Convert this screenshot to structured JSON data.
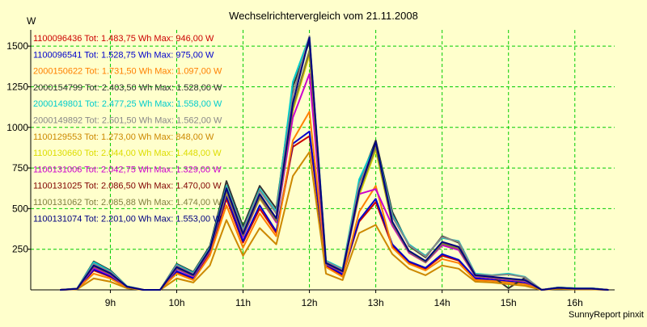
{
  "chart_data": {
    "type": "line",
    "title": "Wechselrichtervergleich vom 21.11.2008",
    "ylabel": "W",
    "xlabel": "",
    "footer": "SunnyReport pinxit",
    "xlim": [
      7.8,
      16.6
    ],
    "ylim": [
      0,
      1600
    ],
    "x_ticks": [
      9,
      10,
      11,
      12,
      13,
      14,
      15,
      16
    ],
    "x_tick_labels": [
      "9h",
      "10h",
      "11h",
      "12h",
      "13h",
      "14h",
      "15h",
      "16h"
    ],
    "y_ticks": [
      250,
      500,
      750,
      1000,
      1250,
      1500
    ],
    "y_tick_labels": [
      "250",
      "500",
      "750",
      "1000",
      "1250",
      "1500"
    ],
    "grid": true,
    "legend_position": "top-left",
    "x": [
      8.25,
      8.5,
      8.75,
      9.0,
      9.25,
      9.5,
      9.75,
      10.0,
      10.25,
      10.5,
      10.75,
      11.0,
      11.25,
      11.5,
      11.75,
      12.0,
      12.25,
      12.5,
      12.75,
      13.0,
      13.25,
      13.5,
      13.75,
      14.0,
      14.25,
      14.5,
      14.75,
      15.0,
      15.25,
      15.5,
      15.75,
      16.0,
      16.25,
      16.5
    ],
    "series": [
      {
        "name": "1100096436 Tot: 1.483,75 Wh Max: 946,00 W",
        "color": "#cc0000",
        "values": [
          0,
          5,
          120,
          80,
          15,
          0,
          0,
          110,
          70,
          230,
          560,
          290,
          500,
          350,
          880,
          946,
          150,
          90,
          420,
          540,
          270,
          170,
          130,
          210,
          180,
          70,
          60,
          50,
          40,
          0,
          10,
          5,
          5,
          0
        ]
      },
      {
        "name": "1100096541 Tot: 1.528,75 Wh Max: 975,00 W",
        "color": "#0000cc",
        "values": [
          0,
          5,
          125,
          85,
          15,
          0,
          0,
          115,
          72,
          240,
          580,
          300,
          520,
          360,
          900,
          975,
          155,
          95,
          430,
          560,
          280,
          175,
          135,
          220,
          185,
          72,
          62,
          52,
          42,
          0,
          10,
          5,
          5,
          0
        ]
      },
      {
        "name": "2000150622 Tot: 1.731,50 Wh Max: 1.097,00 W",
        "color": "#ff8000",
        "values": [
          0,
          5,
          100,
          70,
          12,
          0,
          0,
          100,
          60,
          210,
          520,
          260,
          470,
          330,
          920,
          1097,
          140,
          80,
          480,
          640,
          260,
          160,
          120,
          190,
          165,
          60,
          55,
          45,
          35,
          0,
          8,
          4,
          4,
          0
        ]
      },
      {
        "name": "2000154799 Tot: 2.403,50 Wh Max: 1.528,00 W",
        "color": "#333333",
        "values": [
          0,
          8,
          175,
          120,
          22,
          0,
          0,
          160,
          110,
          270,
          670,
          390,
          640,
          500,
          1250,
          1528,
          170,
          120,
          660,
          920,
          480,
          270,
          200,
          330,
          290,
          95,
          85,
          10,
          75,
          0,
          15,
          10,
          10,
          0
        ]
      },
      {
        "name": "2000149801 Tot: 2.477,25 Wh Max: 1.558,00 W",
        "color": "#00cccc",
        "values": [
          0,
          8,
          170,
          115,
          22,
          0,
          0,
          155,
          105,
          260,
          640,
          370,
          620,
          480,
          1280,
          1558,
          180,
          130,
          680,
          900,
          460,
          280,
          210,
          320,
          300,
          100,
          90,
          100,
          80,
          0,
          15,
          10,
          10,
          0
        ]
      },
      {
        "name": "2000149892 Tot: 2.501,50 Wh Max: 1.562,00 W",
        "color": "#888888",
        "values": [
          0,
          8,
          160,
          110,
          20,
          0,
          0,
          150,
          100,
          255,
          630,
          365,
          610,
          470,
          1200,
          1562,
          175,
          125,
          650,
          890,
          450,
          275,
          205,
          325,
          295,
          95,
          88,
          95,
          78,
          0,
          14,
          9,
          9,
          0
        ]
      },
      {
        "name": "1100129553 Tot: 1.273,00 Wh Max: 848,00 W",
        "color": "#cc8800",
        "values": [
          0,
          4,
          70,
          50,
          10,
          0,
          0,
          70,
          45,
          150,
          430,
          210,
          380,
          280,
          700,
          848,
          100,
          60,
          350,
          400,
          220,
          130,
          90,
          150,
          130,
          50,
          45,
          35,
          25,
          0,
          6,
          3,
          3,
          0
        ]
      },
      {
        "name": "1100130660 Tot: 2.044,00 Wh Max: 1.448,00 W",
        "color": "#dddd00",
        "values": [
          0,
          6,
          140,
          95,
          18,
          0,
          0,
          130,
          85,
          240,
          600,
          330,
          560,
          420,
          1100,
          1448,
          160,
          110,
          580,
          860,
          400,
          230,
          170,
          280,
          250,
          85,
          75,
          65,
          55,
          0,
          12,
          7,
          7,
          0
        ]
      },
      {
        "name": "1100131006 Tot: 2.042,75 Wh Max: 1.329,00 W",
        "color": "#cc00cc",
        "values": [
          0,
          6,
          135,
          92,
          18,
          0,
          0,
          128,
          82,
          238,
          610,
          325,
          570,
          415,
          1060,
          1329,
          158,
          108,
          590,
          620,
          395,
          228,
          168,
          275,
          245,
          82,
          72,
          62,
          52,
          0,
          12,
          7,
          7,
          0
        ]
      },
      {
        "name": "1100131025 Tot: 2.086,50 Wh Max: 1.470,00 W",
        "color": "#800000",
        "values": [
          0,
          6,
          145,
          98,
          19,
          0,
          0,
          135,
          88,
          245,
          615,
          335,
          575,
          425,
          1120,
          1470,
          162,
          112,
          600,
          880,
          410,
          235,
          172,
          285,
          255,
          87,
          77,
          67,
          57,
          0,
          12,
          7,
          7,
          0
        ]
      },
      {
        "name": "1100131062 Tot: 2.085,88 Wh Max: 1.474,00 W",
        "color": "#808040",
        "values": [
          0,
          6,
          144,
          97,
          19,
          0,
          0,
          134,
          87,
          244,
          612,
          334,
          572,
          424,
          1118,
          1474,
          161,
          111,
          598,
          878,
          408,
          234,
          171,
          284,
          254,
          86,
          76,
          66,
          56,
          0,
          12,
          7,
          7,
          0
        ]
      },
      {
        "name": "1100131074 Tot: 2.201,00 Wh Max: 1.553,00 W",
        "color": "#000080",
        "values": [
          0,
          7,
          150,
          102,
          20,
          0,
          0,
          140,
          92,
          250,
          625,
          345,
          590,
          440,
          1150,
          1553,
          165,
          115,
          610,
          910,
          420,
          240,
          178,
          295,
          265,
          90,
          80,
          70,
          60,
          0,
          13,
          8,
          8,
          0
        ]
      }
    ]
  }
}
